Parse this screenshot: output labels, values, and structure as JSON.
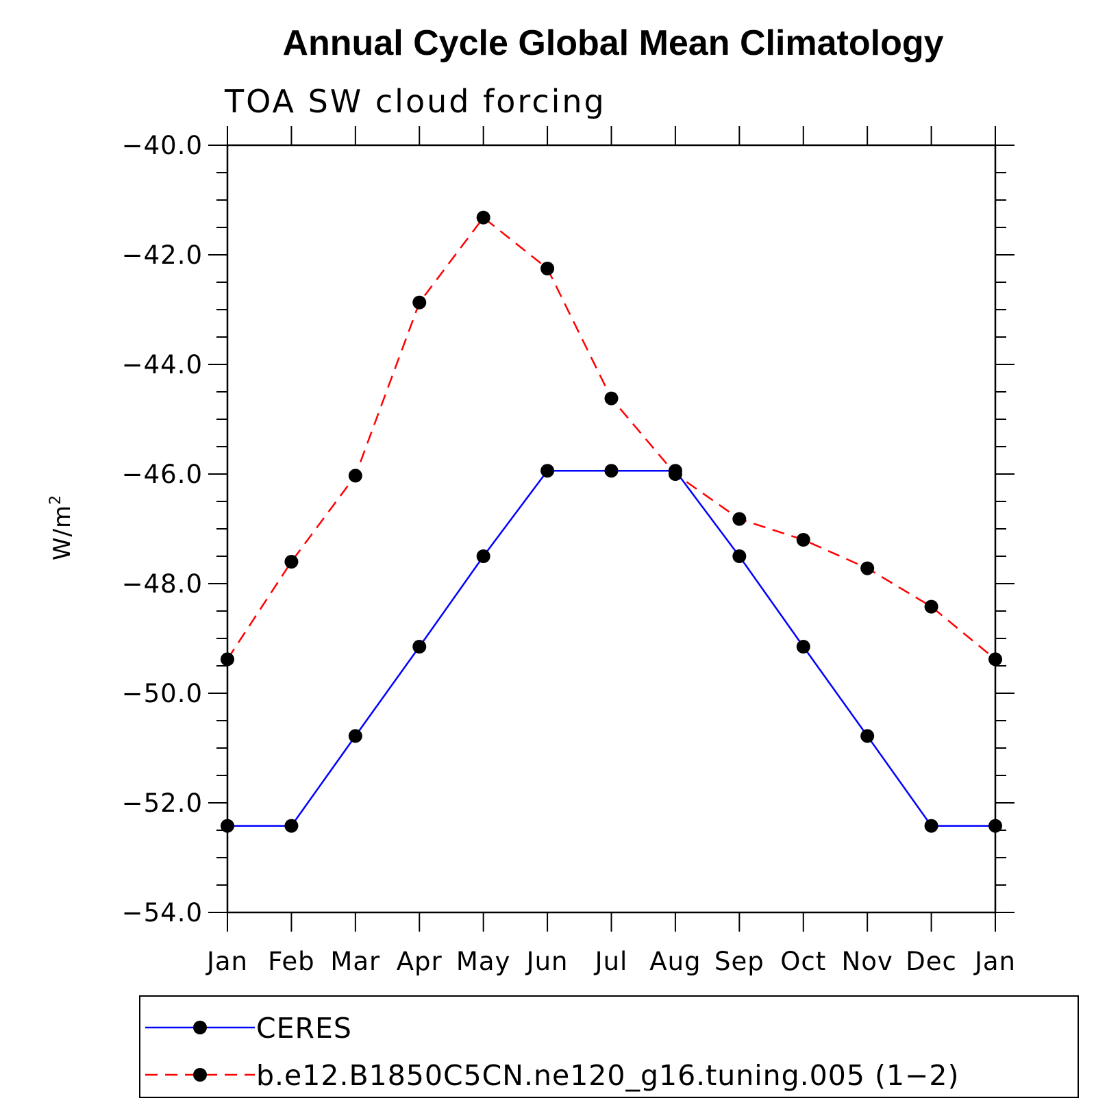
{
  "chart_data": {
    "type": "line",
    "title": "Annual Cycle Global Mean Climatology",
    "subtitle": "TOA SW cloud forcing",
    "ylabel_base": "W/m",
    "ylabel_sup": "2",
    "xlabel": "",
    "categories": [
      "Jan",
      "Feb",
      "Mar",
      "Apr",
      "May",
      "Jun",
      "Jul",
      "Aug",
      "Sep",
      "Oct",
      "Nov",
      "Dec",
      "Jan"
    ],
    "ylim": [
      -54.0,
      -40.0
    ],
    "yticks": [
      -40.0,
      -42.0,
      -44.0,
      -46.0,
      -48.0,
      -50.0,
      -52.0,
      -54.0
    ],
    "ytick_labels": [
      "−40.0",
      "−42.0",
      "−44.0",
      "−46.0",
      "−48.0",
      "−50.0",
      "−52.0",
      "−54.0"
    ],
    "yminor_step": 0.5,
    "grid": false,
    "legend_position": "bottom",
    "series": [
      {
        "name": "CERES",
        "color": "#0000ff",
        "style": "solid",
        "values": [
          -52.42,
          -52.42,
          -50.78,
          -49.15,
          -47.5,
          -45.94,
          -45.94,
          -45.94,
          -47.5,
          -49.15,
          -50.78,
          -52.42,
          -52.42
        ]
      },
      {
        "name": "b.e12.B1850C5CN.ne120_g16.tuning.005 (1−2)",
        "color": "#ff0000",
        "style": "dashed",
        "values": [
          -49.38,
          -47.6,
          -46.03,
          -42.87,
          -41.32,
          -42.25,
          -44.62,
          -46.0,
          -46.82,
          -47.2,
          -47.72,
          -48.42,
          -49.38
        ]
      }
    ]
  }
}
